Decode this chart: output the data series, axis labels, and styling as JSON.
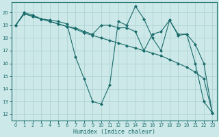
{
  "xlabel": "Humidex (Indice chaleur)",
  "xlim": [
    -0.5,
    23.5
  ],
  "ylim": [
    11.5,
    20.8
  ],
  "xticks": [
    0,
    1,
    2,
    3,
    4,
    5,
    6,
    7,
    8,
    9,
    10,
    11,
    12,
    13,
    14,
    15,
    16,
    17,
    18,
    19,
    20,
    21,
    22,
    23
  ],
  "yticks": [
    12,
    13,
    14,
    15,
    16,
    17,
    18,
    19,
    20
  ],
  "bg_color": "#cce8e8",
  "line_color": "#1a6b6b",
  "grid_color": "#aacfcf",
  "lines": [
    {
      "x": [
        0,
        1,
        2,
        3,
        4,
        5,
        6,
        7,
        8,
        9,
        10,
        11,
        12,
        13,
        14,
        15,
        16,
        17,
        18,
        19,
        20,
        21,
        22,
        23
      ],
      "y": [
        19,
        20,
        19.8,
        19.5,
        19.4,
        19.3,
        19.1,
        16.5,
        14.8,
        13.0,
        12.8,
        14.3,
        19.3,
        19.0,
        20.5,
        19.5,
        18.0,
        17.0,
        19.4,
        18.2,
        18.3,
        16.0,
        13.0,
        12.1
      ]
    },
    {
      "x": [
        0,
        1,
        2,
        3,
        4,
        5,
        6,
        7,
        8,
        9,
        10,
        11,
        12,
        13,
        14,
        15,
        16,
        17,
        18,
        19,
        20,
        21,
        22,
        23
      ],
      "y": [
        19,
        19.9,
        19.7,
        19.5,
        19.3,
        19.1,
        18.9,
        18.7,
        18.4,
        18.2,
        18.0,
        17.8,
        17.6,
        17.4,
        17.2,
        17.0,
        16.8,
        16.6,
        16.3,
        16.0,
        15.7,
        15.3,
        14.8,
        12.1
      ]
    },
    {
      "x": [
        0,
        1,
        2,
        3,
        4,
        5,
        6,
        7,
        8,
        9,
        10,
        11,
        12,
        13,
        14,
        15,
        16,
        17,
        18,
        19,
        20,
        21,
        22,
        23
      ],
      "y": [
        19,
        19.9,
        19.7,
        19.5,
        19.3,
        19.1,
        18.9,
        18.8,
        18.5,
        18.3,
        19.0,
        19.0,
        18.8,
        18.8,
        18.5,
        17.0,
        18.3,
        18.5,
        19.4,
        18.3,
        18.3,
        17.5,
        16.0,
        12.1
      ]
    }
  ]
}
